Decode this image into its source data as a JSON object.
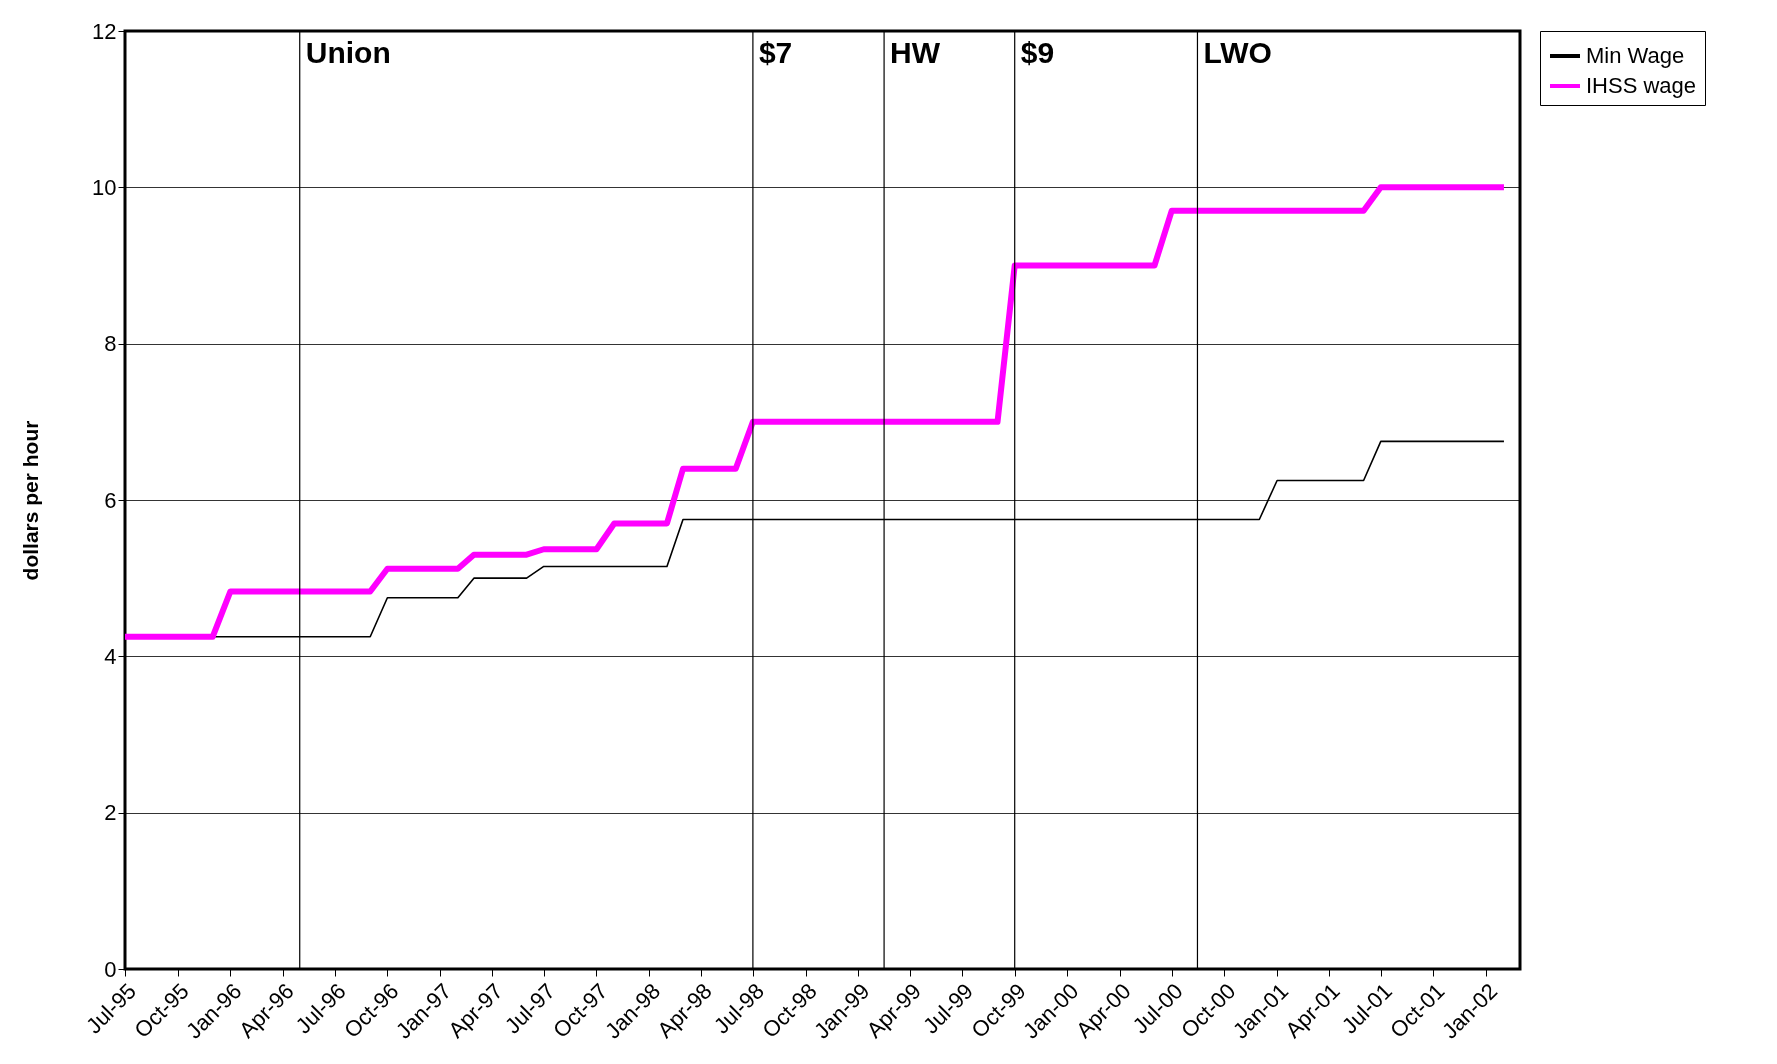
{
  "chart_data": {
    "type": "line",
    "ylabel": "dollars per hour",
    "x": [
      "1995-07",
      "1995-08",
      "1995-09",
      "1995-10",
      "1995-11",
      "1995-12",
      "1996-01",
      "1996-02",
      "1996-03",
      "1996-04",
      "1996-05",
      "1996-06",
      "1996-07",
      "1996-08",
      "1996-09",
      "1996-10",
      "1996-11",
      "1996-12",
      "1997-01",
      "1997-02",
      "1997-03",
      "1997-04",
      "1997-05",
      "1997-06",
      "1997-07",
      "1997-08",
      "1997-09",
      "1997-10",
      "1997-11",
      "1997-12",
      "1998-01",
      "1998-02",
      "1998-03",
      "1998-04",
      "1998-05",
      "1998-06",
      "1998-07",
      "1998-08",
      "1998-09",
      "1998-10",
      "1998-11",
      "1998-12",
      "1999-01",
      "1999-02",
      "1999-03",
      "1999-04",
      "1999-05",
      "1999-06",
      "1999-07",
      "1999-08",
      "1999-09",
      "1999-10",
      "1999-11",
      "1999-12",
      "2000-01",
      "2000-02",
      "2000-03",
      "2000-04",
      "2000-05",
      "2000-06",
      "2000-07",
      "2000-08",
      "2000-09",
      "2000-10",
      "2000-11",
      "2000-12",
      "2001-01",
      "2001-02",
      "2001-03",
      "2001-04",
      "2001-05",
      "2001-06",
      "2001-07",
      "2001-08",
      "2001-09",
      "2001-10",
      "2001-11",
      "2001-12",
      "2002-01",
      "2002-02"
    ],
    "series": [
      {
        "name": "Min Wage",
        "color": "#000000",
        "values": [
          null,
          null,
          null,
          null,
          null,
          4.25,
          4.25,
          4.25,
          4.25,
          4.25,
          4.25,
          4.25,
          4.25,
          4.25,
          4.25,
          4.75,
          4.75,
          4.75,
          4.75,
          4.75,
          5.0,
          5.0,
          5.0,
          5.0,
          5.15,
          5.15,
          5.15,
          5.15,
          5.15,
          5.15,
          5.15,
          5.15,
          5.75,
          5.75,
          5.75,
          5.75,
          5.75,
          5.75,
          5.75,
          5.75,
          5.75,
          5.75,
          5.75,
          5.75,
          5.75,
          5.75,
          5.75,
          5.75,
          5.75,
          5.75,
          5.75,
          5.75,
          5.75,
          5.75,
          5.75,
          5.75,
          5.75,
          5.75,
          5.75,
          5.75,
          5.75,
          5.75,
          5.75,
          5.75,
          5.75,
          5.75,
          6.25,
          6.25,
          6.25,
          6.25,
          6.25,
          6.25,
          6.75,
          6.75,
          6.75,
          6.75,
          6.75,
          6.75,
          6.75,
          6.75
        ]
      },
      {
        "name": "IHSS wage",
        "color": "#ff00ff",
        "values": [
          4.25,
          4.25,
          4.25,
          4.25,
          4.25,
          4.25,
          4.83,
          4.83,
          4.83,
          4.83,
          4.83,
          4.83,
          4.83,
          4.83,
          4.83,
          5.12,
          5.12,
          5.12,
          5.12,
          5.12,
          5.3,
          5.3,
          5.3,
          5.3,
          5.37,
          5.37,
          5.37,
          5.37,
          5.7,
          5.7,
          5.7,
          5.7,
          6.4,
          6.4,
          6.4,
          6.4,
          7.0,
          7.0,
          7.0,
          7.0,
          7.0,
          7.0,
          7.0,
          7.0,
          7.0,
          7.0,
          7.0,
          7.0,
          7.0,
          7.0,
          7.0,
          9.0,
          9.0,
          9.0,
          9.0,
          9.0,
          9.0,
          9.0,
          9.0,
          9.0,
          9.7,
          9.7,
          9.7,
          9.7,
          9.7,
          9.7,
          9.7,
          9.7,
          9.7,
          9.7,
          9.7,
          9.7,
          10.0,
          10.0,
          10.0,
          10.0,
          10.0,
          10.0,
          10.0,
          10.0
        ]
      }
    ],
    "xlim": [
      "1995-07",
      "2002-03"
    ],
    "xticks": [
      {
        "value": "1995-07",
        "label": "Jul-95"
      },
      {
        "value": "1995-10",
        "label": "Oct-95"
      },
      {
        "value": "1996-01",
        "label": "Jan-96"
      },
      {
        "value": "1996-04",
        "label": "Apr-96"
      },
      {
        "value": "1996-07",
        "label": "Jul-96"
      },
      {
        "value": "1996-10",
        "label": "Oct-96"
      },
      {
        "value": "1997-01",
        "label": "Jan-97"
      },
      {
        "value": "1997-04",
        "label": "Apr-97"
      },
      {
        "value": "1997-07",
        "label": "Jul-97"
      },
      {
        "value": "1997-10",
        "label": "Oct-97"
      },
      {
        "value": "1998-01",
        "label": "Jan-98"
      },
      {
        "value": "1998-04",
        "label": "Apr-98"
      },
      {
        "value": "1998-07",
        "label": "Jul-98"
      },
      {
        "value": "1998-10",
        "label": "Oct-98"
      },
      {
        "value": "1999-01",
        "label": "Jan-99"
      },
      {
        "value": "1999-04",
        "label": "Apr-99"
      },
      {
        "value": "1999-07",
        "label": "Jul-99"
      },
      {
        "value": "1999-10",
        "label": "Oct-99"
      },
      {
        "value": "2000-01",
        "label": "Jan-00"
      },
      {
        "value": "2000-04",
        "label": "Apr-00"
      },
      {
        "value": "2000-07",
        "label": "Jul-00"
      },
      {
        "value": "2000-10",
        "label": "Oct-00"
      },
      {
        "value": "2001-01",
        "label": "Jan-01"
      },
      {
        "value": "2001-04",
        "label": "Apr-01"
      },
      {
        "value": "2001-07",
        "label": "Jul-01"
      },
      {
        "value": "2001-10",
        "label": "Oct-01"
      },
      {
        "value": "2002-01",
        "label": "Jan-02"
      }
    ],
    "ylim": [
      0,
      12
    ],
    "yticks": [
      0,
      2,
      4,
      6,
      8,
      10,
      12
    ],
    "grid": "y",
    "legend": "right",
    "ref_lines": [
      {
        "axis": "x",
        "value": "1996-05",
        "label": "Union"
      },
      {
        "axis": "x",
        "value": "1998-07",
        "label": "$7"
      },
      {
        "axis": "x",
        "value": "1999-02-15",
        "label": "HW"
      },
      {
        "axis": "x",
        "value": "1999-10",
        "label": "$9"
      },
      {
        "axis": "x",
        "value": "2000-08-15",
        "label": "LWO"
      }
    ]
  }
}
